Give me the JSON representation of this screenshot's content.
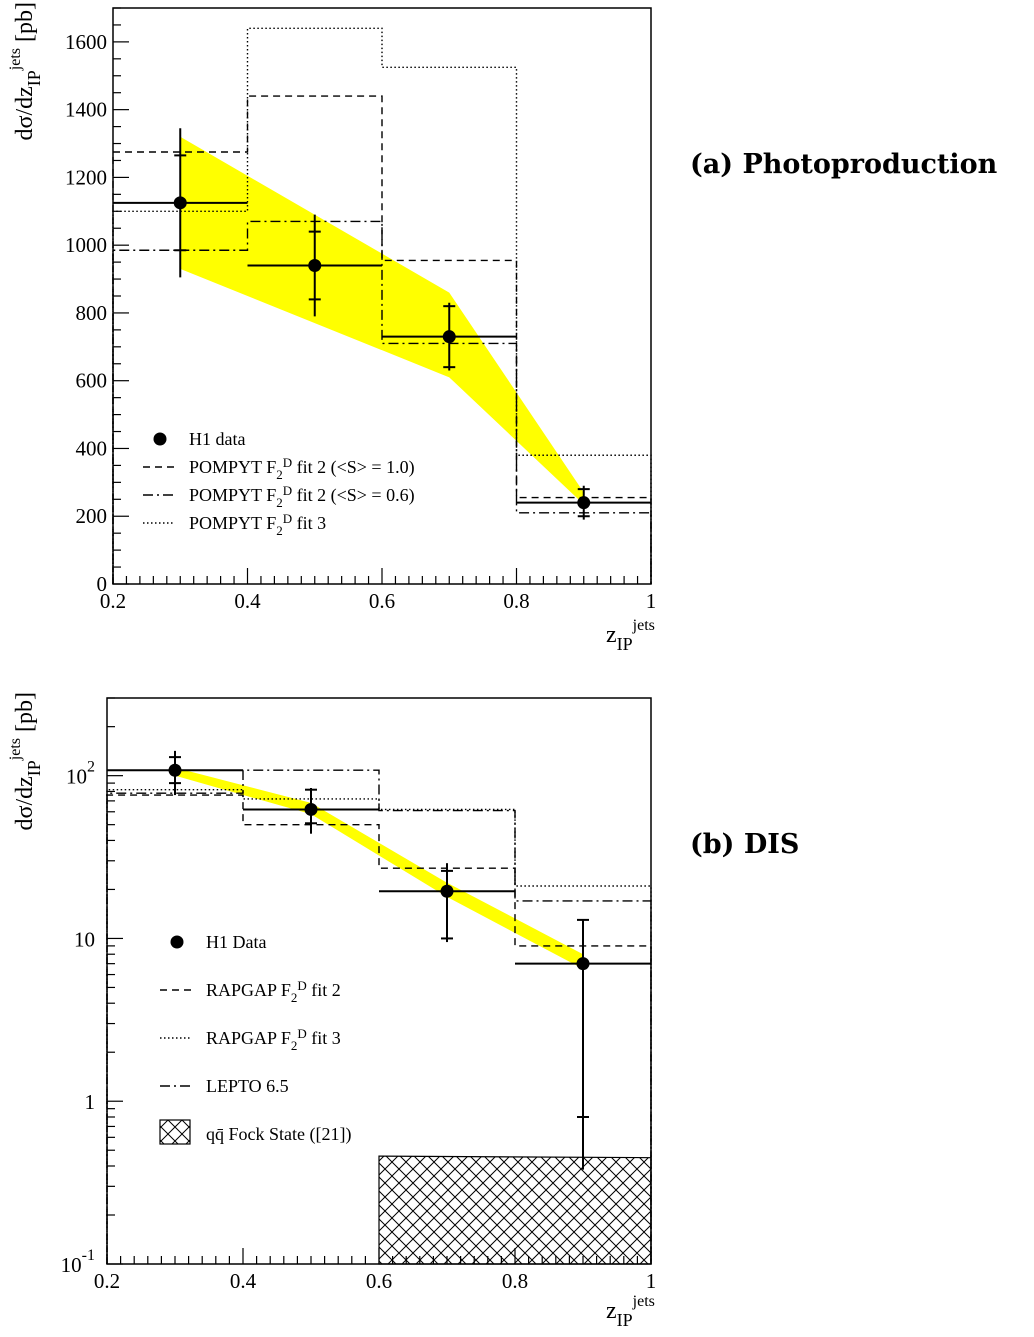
{
  "chart_data": [
    {
      "panel": "(a) Photoproduction",
      "type": "line",
      "xlabel": {
        "base": "z",
        "sub": "IP",
        "sup": "jets"
      },
      "ylabel": {
        "prefix": "dσ/dz",
        "sub": "IP",
        "sup": "jets",
        "unit": "[pb]"
      },
      "xlim": [
        0.2,
        1.0
      ],
      "ylim": [
        0,
        1700
      ],
      "yscale": "linear",
      "x_ticks": [
        "0.2",
        "0.4",
        "0.6",
        "0.8",
        "1"
      ],
      "y_ticks": [
        "0",
        "200",
        "400",
        "600",
        "800",
        "1000",
        "1200",
        "1400",
        "1600"
      ],
      "y_tick_values": [
        0,
        200,
        400,
        600,
        800,
        1000,
        1200,
        1400,
        1600
      ],
      "bin_edges": [
        0.2,
        0.4,
        0.6,
        0.8,
        1.0
      ],
      "data": {
        "name": "H1 data",
        "x": [
          0.3,
          0.5,
          0.7,
          0.9
        ],
        "y": [
          1125,
          940,
          730,
          240
        ],
        "stat_err": [
          140,
          100,
          90,
          40
        ],
        "tot_err": [
          220,
          150,
          100,
          50
        ]
      },
      "band": {
        "color": "#ffff00",
        "x": [
          0.3,
          0.7,
          0.9
        ],
        "upper": [
          1320,
          860,
          270
        ],
        "lower": [
          930,
          610,
          235
        ]
      },
      "series": [
        {
          "name": "POMPYT F₂ᴰ fit 2 (<S> = 1.0)",
          "style": "dashed",
          "values": [
            1275,
            1440,
            955,
            255
          ]
        },
        {
          "name": "POMPYT F₂ᴰ fit 2 (<S> = 0.6)",
          "style": "dashdot",
          "values": [
            985,
            1070,
            710,
            210
          ]
        },
        {
          "name": "POMPYT F₂ᴰ fit 3",
          "style": "dotted",
          "values": [
            1100,
            1640,
            1525,
            380
          ]
        }
      ],
      "legend": {
        "placement": "lower-left",
        "items": [
          {
            "marker": "dot",
            "label": "H1 data"
          },
          {
            "style": "dashed",
            "label": "POMPYT F",
            "sub": "2",
            "sup": "D",
            "rest": " fit 2 (<S> = 1.0)"
          },
          {
            "style": "dashdot",
            "label": "POMPYT F",
            "sub": "2",
            "sup": "D",
            "rest": " fit 2 (<S> = 0.6)"
          },
          {
            "style": "dotted",
            "label": "POMPYT F",
            "sub": "2",
            "sup": "D",
            "rest": " fit 3"
          }
        ]
      }
    },
    {
      "panel": "(b) DIS",
      "type": "line",
      "xlabel": {
        "base": "z",
        "sub": "IP",
        "sup": "jets"
      },
      "ylabel": {
        "prefix": "dσ/dz",
        "sub": "IP",
        "sup": "jets",
        "unit": "[pb]"
      },
      "xlim": [
        0.2,
        1.0
      ],
      "ylim": [
        0.1,
        300
      ],
      "yscale": "log",
      "x_ticks": [
        "0.2",
        "0.4",
        "0.6",
        "0.8",
        "1"
      ],
      "y_ticks": [
        {
          "value": 100,
          "base": "10",
          "exp": "2"
        },
        {
          "value": 10,
          "base": "10",
          "exp": ""
        },
        {
          "value": 1,
          "base": "1",
          "exp": ""
        },
        {
          "value": 0.1,
          "base": "10",
          "exp": "-1"
        }
      ],
      "bin_edges": [
        0.2,
        0.4,
        0.6,
        0.8,
        1.0
      ],
      "data": {
        "name": "H1 Data",
        "x": [
          0.3,
          0.5,
          0.7,
          0.9
        ],
        "y": [
          108,
          62,
          19.5,
          7
        ],
        "stat_err_low": [
          90,
          51,
          10,
          0.8
        ],
        "stat_err_high": [
          130,
          82,
          26,
          13
        ],
        "tot_err_low": [
          76,
          44,
          9.5,
          0.38
        ],
        "tot_err_high": [
          142,
          84,
          29,
          13
        ]
      },
      "band": {
        "color": "#ffff00",
        "x": [
          0.3,
          0.5,
          0.7,
          0.9
        ],
        "upper": [
          112,
          68,
          22,
          8
        ],
        "lower": [
          100,
          58,
          18,
          6.5
        ]
      },
      "series": [
        {
          "name": "RAPGAP F₂ᴰ fit 2",
          "style": "dashed",
          "values": [
            76,
            50,
            27,
            9
          ]
        },
        {
          "name": "RAPGAP F₂ᴰ fit 3",
          "style": "dotted",
          "values": [
            82,
            72,
            62,
            21
          ]
        },
        {
          "name": "LEPTO 6.5",
          "style": "dashdot",
          "values": [
            78,
            108,
            61,
            17
          ]
        }
      ],
      "fock_state": {
        "label": "q q̄ Fock State ([21])",
        "x": [
          0.6,
          1.0
        ],
        "values": [
          0.46,
          0.45
        ]
      },
      "legend": {
        "placement": "lower-left",
        "items": [
          {
            "marker": "dot",
            "label": "H1 Data"
          },
          {
            "style": "dashed",
            "label": "RAPGAP F",
            "sub": "2",
            "sup": "D",
            "rest": " fit 2"
          },
          {
            "style": "dotted",
            "label": "RAPGAP F",
            "sub": "2",
            "sup": "D",
            "rest": " fit 3"
          },
          {
            "style": "dashdot",
            "label": "LEPTO 6.5"
          },
          {
            "marker": "hatch",
            "label": "qq̄ Fock State ([21])"
          }
        ]
      }
    }
  ]
}
